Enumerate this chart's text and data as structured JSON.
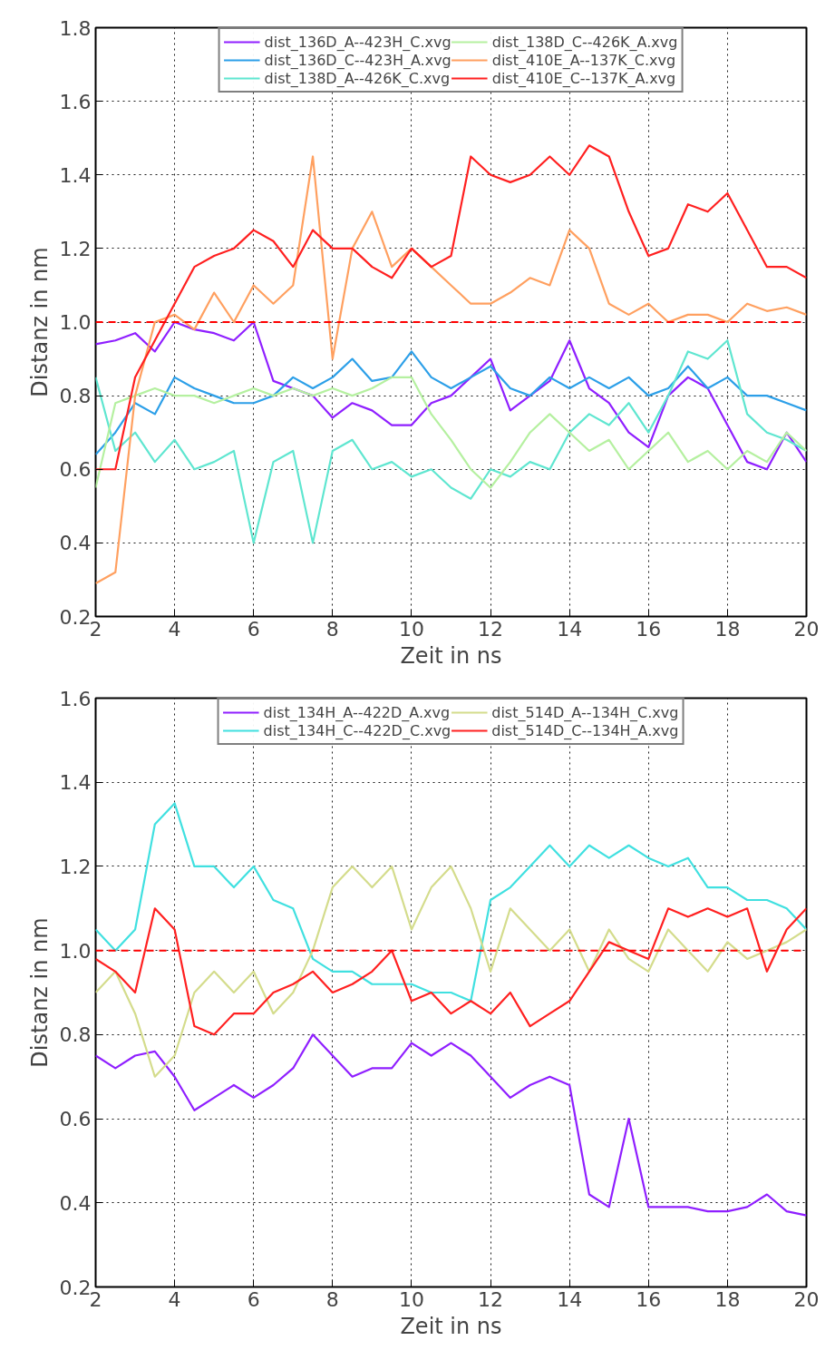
{
  "chart_data": [
    {
      "type": "line",
      "xlabel": "Zeit in ns",
      "ylabel": "Distanz in nm",
      "x": [
        2,
        2.5,
        3,
        3.5,
        4,
        4.5,
        5,
        5.5,
        6,
        6.5,
        7,
        7.5,
        8,
        8.5,
        9,
        9.5,
        10,
        10.5,
        11,
        11.5,
        12,
        12.5,
        13,
        13.5,
        14,
        14.5,
        15,
        15.5,
        16,
        16.5,
        17,
        17.5,
        18,
        18.5,
        19,
        19.5,
        20
      ],
      "xlim": [
        2,
        20
      ],
      "xticks": [
        2,
        4,
        6,
        8,
        10,
        12,
        14,
        16,
        18,
        20
      ],
      "ylim": [
        0.2,
        1.8
      ],
      "yticks": [
        0.2,
        0.4,
        0.6,
        0.8,
        {
          "value": 1,
          "label": "1.0"
        },
        1.2,
        1.4,
        1.6,
        1.8
      ],
      "grid": true,
      "legend": "top",
      "ref_lines": [
        {
          "axis": "y",
          "value": 1.0,
          "color": "#ff0000",
          "line_style": "dashed"
        }
      ],
      "series": [
        {
          "name": "dist_136D_A--423H_C.xvg",
          "color": "#8f1fff",
          "values": [
            0.94,
            0.95,
            0.97,
            0.92,
            1.0,
            0.98,
            0.97,
            0.95,
            1.0,
            0.84,
            0.82,
            0.8,
            0.74,
            0.78,
            0.76,
            0.72,
            0.72,
            0.78,
            0.8,
            0.85,
            0.9,
            0.76,
            0.8,
            0.84,
            0.95,
            0.82,
            0.78,
            0.7,
            0.66,
            0.8,
            0.85,
            0.82,
            0.72,
            0.62,
            0.6,
            0.7,
            0.62
          ]
        },
        {
          "name": "dist_136D_C--423H_A.xvg",
          "color": "#2c9fe8",
          "values": [
            0.64,
            0.7,
            0.78,
            0.75,
            0.85,
            0.82,
            0.8,
            0.78,
            0.78,
            0.8,
            0.85,
            0.82,
            0.85,
            0.9,
            0.84,
            0.85,
            0.92,
            0.85,
            0.82,
            0.85,
            0.88,
            0.82,
            0.8,
            0.85,
            0.82,
            0.85,
            0.82,
            0.85,
            0.8,
            0.82,
            0.88,
            0.82,
            0.85,
            0.8,
            0.8,
            0.78,
            0.76
          ]
        },
        {
          "name": "dist_138D_A--426K_C.xvg",
          "color": "#5fe6d0",
          "values": [
            0.85,
            0.65,
            0.7,
            0.62,
            0.68,
            0.6,
            0.62,
            0.65,
            0.4,
            0.62,
            0.65,
            0.4,
            0.65,
            0.68,
            0.6,
            0.62,
            0.58,
            0.6,
            0.55,
            0.52,
            0.6,
            0.58,
            0.62,
            0.6,
            0.7,
            0.75,
            0.72,
            0.78,
            0.7,
            0.8,
            0.92,
            0.9,
            0.95,
            0.75,
            0.7,
            0.68,
            0.65
          ]
        },
        {
          "name": "dist_138D_C--426K_A.xvg",
          "color": "#b5f0a0",
          "values": [
            0.55,
            0.78,
            0.8,
            0.82,
            0.8,
            0.8,
            0.78,
            0.8,
            0.82,
            0.8,
            0.82,
            0.8,
            0.82,
            0.8,
            0.82,
            0.85,
            0.85,
            0.75,
            0.68,
            0.6,
            0.55,
            0.62,
            0.7,
            0.75,
            0.7,
            0.65,
            0.68,
            0.6,
            0.65,
            0.7,
            0.62,
            0.65,
            0.6,
            0.65,
            0.62,
            0.7,
            0.65
          ]
        },
        {
          "name": "dist_410E_A--137K_C.xvg",
          "color": "#ffa060",
          "values": [
            0.29,
            0.32,
            0.8,
            1.0,
            1.02,
            0.98,
            1.08,
            1.0,
            1.1,
            1.05,
            1.1,
            1.45,
            0.9,
            1.2,
            1.3,
            1.15,
            1.2,
            1.15,
            1.1,
            1.05,
            1.05,
            1.08,
            1.12,
            1.1,
            1.25,
            1.2,
            1.05,
            1.02,
            1.05,
            1.0,
            1.02,
            1.02,
            1.0,
            1.05,
            1.03,
            1.04,
            1.02
          ]
        },
        {
          "name": "dist_410E_C--137K_A.xvg",
          "color": "#ff2020",
          "values": [
            0.6,
            0.6,
            0.85,
            0.95,
            1.05,
            1.15,
            1.18,
            1.2,
            1.25,
            1.22,
            1.15,
            1.25,
            1.2,
            1.2,
            1.15,
            1.12,
            1.2,
            1.15,
            1.18,
            1.45,
            1.4,
            1.38,
            1.4,
            1.45,
            1.4,
            1.48,
            1.45,
            1.3,
            1.18,
            1.2,
            1.32,
            1.3,
            1.35,
            1.25,
            1.15,
            1.15,
            1.12
          ]
        }
      ]
    },
    {
      "type": "line",
      "xlabel": "Zeit in ns",
      "ylabel": "Distanz in nm",
      "x": [
        2,
        2.5,
        3,
        3.5,
        4,
        4.5,
        5,
        5.5,
        6,
        6.5,
        7,
        7.5,
        8,
        8.5,
        9,
        9.5,
        10,
        10.5,
        11,
        11.5,
        12,
        12.5,
        13,
        13.5,
        14,
        14.5,
        15,
        15.5,
        16,
        16.5,
        17,
        17.5,
        18,
        18.5,
        19,
        19.5,
        20
      ],
      "xlim": [
        2,
        20
      ],
      "xticks": [
        2,
        4,
        6,
        8,
        10,
        12,
        14,
        16,
        18,
        20
      ],
      "ylim": [
        0.2,
        1.6
      ],
      "yticks": [
        0.2,
        0.4,
        0.6,
        0.8,
        {
          "value": 1,
          "label": "1.0"
        },
        1.2,
        1.4,
        1.6
      ],
      "grid": true,
      "legend": "top",
      "ref_lines": [
        {
          "axis": "y",
          "value": 1.0,
          "color": "#ff0000",
          "line_style": "dashed"
        }
      ],
      "series": [
        {
          "name": "dist_134H_A--422D_A.xvg",
          "color": "#8f1fff",
          "values": [
            0.75,
            0.72,
            0.75,
            0.76,
            0.7,
            0.62,
            0.65,
            0.68,
            0.65,
            0.68,
            0.72,
            0.8,
            0.75,
            0.7,
            0.72,
            0.72,
            0.78,
            0.75,
            0.78,
            0.75,
            0.7,
            0.65,
            0.68,
            0.7,
            0.68,
            0.42,
            0.39,
            0.6,
            0.39,
            0.39,
            0.39,
            0.38,
            0.38,
            0.39,
            0.42,
            0.38,
            0.37
          ]
        },
        {
          "name": "dist_134H_C--422D_C.xvg",
          "color": "#40e0e0",
          "values": [
            1.05,
            1.0,
            1.05,
            1.3,
            1.35,
            1.2,
            1.2,
            1.15,
            1.2,
            1.12,
            1.1,
            0.98,
            0.95,
            0.95,
            0.92,
            0.92,
            0.92,
            0.9,
            0.9,
            0.88,
            1.12,
            1.15,
            1.2,
            1.25,
            1.2,
            1.25,
            1.22,
            1.25,
            1.22,
            1.2,
            1.22,
            1.15,
            1.15,
            1.12,
            1.12,
            1.1,
            1.05
          ]
        },
        {
          "name": "dist_514D_A--134H_C.xvg",
          "color": "#d4dc8c",
          "values": [
            0.9,
            0.95,
            0.85,
            0.7,
            0.75,
            0.9,
            0.95,
            0.9,
            0.95,
            0.85,
            0.9,
            1.0,
            1.15,
            1.2,
            1.15,
            1.2,
            1.05,
            1.15,
            1.2,
            1.1,
            0.95,
            1.1,
            1.05,
            1.0,
            1.05,
            0.95,
            1.05,
            0.98,
            0.95,
            1.05,
            1.0,
            0.95,
            1.02,
            0.98,
            1.0,
            1.02,
            1.05
          ]
        },
        {
          "name": "dist_514D_C--134H_A.xvg",
          "color": "#ff2020",
          "values": [
            0.98,
            0.95,
            0.9,
            1.1,
            1.05,
            0.82,
            0.8,
            0.85,
            0.85,
            0.9,
            0.92,
            0.95,
            0.9,
            0.92,
            0.95,
            1.0,
            0.88,
            0.9,
            0.85,
            0.88,
            0.85,
            0.9,
            0.82,
            0.85,
            0.88,
            0.95,
            1.02,
            1.0,
            0.98,
            1.1,
            1.08,
            1.1,
            1.08,
            1.1,
            0.95,
            1.05,
            1.1
          ]
        }
      ]
    }
  ]
}
